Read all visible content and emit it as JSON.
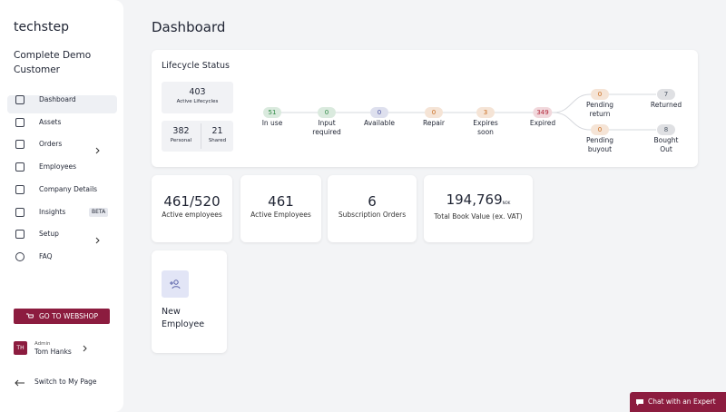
{
  "brand": "techstep",
  "customer": "Complete Demo Customer",
  "nav": {
    "items": [
      {
        "label": "Dashboard"
      },
      {
        "label": "Assets"
      },
      {
        "label": "Orders"
      },
      {
        "label": "Employees"
      },
      {
        "label": "Company Details"
      },
      {
        "label": "Insights",
        "badge": "BETA"
      },
      {
        "label": "Setup"
      },
      {
        "label": "FAQ"
      }
    ]
  },
  "webshop_button": "GO TO WEBSHOP",
  "user": {
    "initials": "TH",
    "role": "Admin",
    "name": "Tom Hanks"
  },
  "switch_link": "Switch to My Page",
  "page_title": "Dashboard",
  "lifecycle": {
    "title": "Lifecycle Status",
    "total": {
      "value": 403,
      "label": "Active Lifecycles"
    },
    "split": [
      {
        "value": 382,
        "label": "Personal"
      },
      {
        "value": 21,
        "label": "Shared"
      }
    ],
    "stages": [
      {
        "value": 51,
        "label": "In use",
        "color": "#2f8a45"
      },
      {
        "value": 0,
        "label": "Input required",
        "color": "#2f8a45"
      },
      {
        "value": 0,
        "label": "Available",
        "color": "#4a52a0"
      },
      {
        "value": 0,
        "label": "Repair",
        "color": "#c96a1c"
      },
      {
        "value": 3,
        "label": "Expires soon",
        "color": "#c96a1c"
      },
      {
        "value": 349,
        "label": "Expired",
        "color": "#b3263a"
      },
      {
        "value": 0,
        "label": "Pending return",
        "color": "#c96a1c"
      },
      {
        "value": 7,
        "label": "Returned",
        "color": "#4b5563"
      },
      {
        "value": 0,
        "label": "Pending buyout",
        "color": "#c96a1c"
      },
      {
        "value": 8,
        "label": "Bought Out",
        "color": "#4b5563"
      }
    ]
  },
  "stats": [
    {
      "value": "461/520",
      "label": "Active employees"
    },
    {
      "value": 461,
      "label": "Active Employees"
    },
    {
      "value": 6,
      "label": "Subscription Orders"
    },
    {
      "value": "194,769",
      "unit": "NOK",
      "label": "Total Book Value (ex. VAT)"
    }
  ],
  "new_employee": "New Employee",
  "chat_button": "Chat with an Expert"
}
